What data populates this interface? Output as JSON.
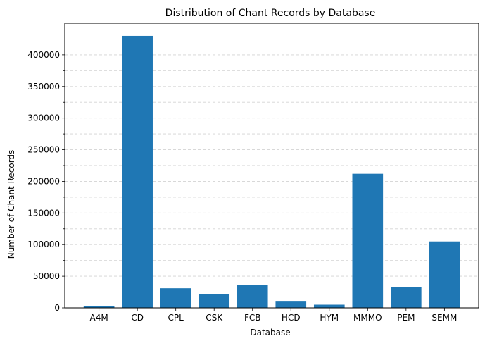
{
  "chart_data": {
    "type": "bar",
    "title": "Distribution of Chant Records by Database",
    "xlabel": "Database",
    "ylabel": "Number of Chant Records",
    "categories": [
      "A4M",
      "CD",
      "CPL",
      "CSK",
      "FCB",
      "HCD",
      "HYM",
      "MMMO",
      "PEM",
      "SEMM"
    ],
    "values": [
      3000,
      430000,
      31000,
      22000,
      36500,
      11000,
      5000,
      212000,
      33000,
      105000
    ],
    "ylim": [
      0,
      450000
    ],
    "yticks": [
      0,
      50000,
      100000,
      150000,
      200000,
      250000,
      300000,
      350000,
      400000
    ],
    "grid": "horizontal dashed, major and minor",
    "legend": "none",
    "colors": {
      "bar": "#1f77b4",
      "grid": "#d3d3d3",
      "axis": "#000000"
    }
  }
}
